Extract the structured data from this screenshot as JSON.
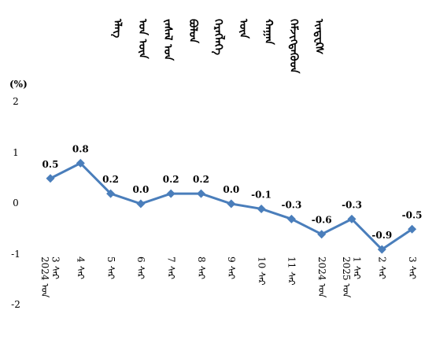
{
  "title_columns": [
    "ᠡᠯᠡᠭ",
    "ᠡᠳ ᠦᠨ",
    "ᠵᠠᠰᠠᠯ ᠤᠨ",
    "ᠪᠤᠯᠤᠨ",
    "ᠬᠡᠷᠡᠭᠯᠡᠭᠡ",
    "ᠦᠨ",
    "ᠬᠠᠭᠠᠨ",
    "ᠬᠡᠮᠵᠢᠭᠳᠡᠭᠦᠦᠨ",
    "ᠢᠨᠳᠧᠺᠰ"
  ],
  "unit_label": "(%)",
  "chart_data": {
    "type": "line",
    "title": "ᠡᠯᠡᠭ ᠡᠳ ᠦᠨ ᠵᠠᠰᠠᠯ ᠤᠨ ᠪᠤᠯᠤᠨ ᠬᠡᠷᠡᠭᠯᠡᠭᠡ ᠦᠨ ᠬᠠᠭᠠᠨ ᠬᠡᠮᠵᠢᠭᠳᠡᠭᠦᠦᠨ ᠢᠨᠳᠧᠺᠰ",
    "ylabel": "(%)",
    "ylim": [
      -2,
      2
    ],
    "yticks": [
      "2",
      "1",
      "0",
      "-1",
      "-2"
    ],
    "grid": false,
    "legend": "none",
    "categories": [
      [
        "2024 ᠣᠨ",
        "3 ᠰᠠᠷ"
      ],
      [
        "4 ᠰᠠᠷ"
      ],
      [
        "5 ᠰᠠᠷ"
      ],
      [
        "6 ᠰᠠᠷ"
      ],
      [
        "7 ᠰᠠᠷ"
      ],
      [
        "8 ᠰᠠᠷ"
      ],
      [
        "9 ᠰᠠᠷ"
      ],
      [
        "10 ᠰᠠᠷ"
      ],
      [
        "11 ᠰᠠᠷ"
      ],
      [
        "2024 ᠣᠨ"
      ],
      [
        "2025 ᠣᠨ",
        "1 ᠰᠠᠷ"
      ],
      [
        "2 ᠰᠠᠷ"
      ],
      [
        "3 ᠰᠠᠷ"
      ]
    ],
    "values": [
      0.5,
      0.8,
      0.2,
      0.0,
      0.2,
      0.2,
      0.0,
      -0.1,
      -0.3,
      -0.6,
      -0.3,
      -0.9,
      -0.5
    ],
    "data_labels": [
      "0.5",
      "0.8",
      "0.2",
      "0.0",
      "0.2",
      "0.2",
      "0.0",
      "-0.1",
      "-0.3",
      "-0.6",
      "-0.3",
      "-0.9",
      "-0.5"
    ],
    "line_color": "#4a7ebb",
    "marker": "diamond"
  }
}
